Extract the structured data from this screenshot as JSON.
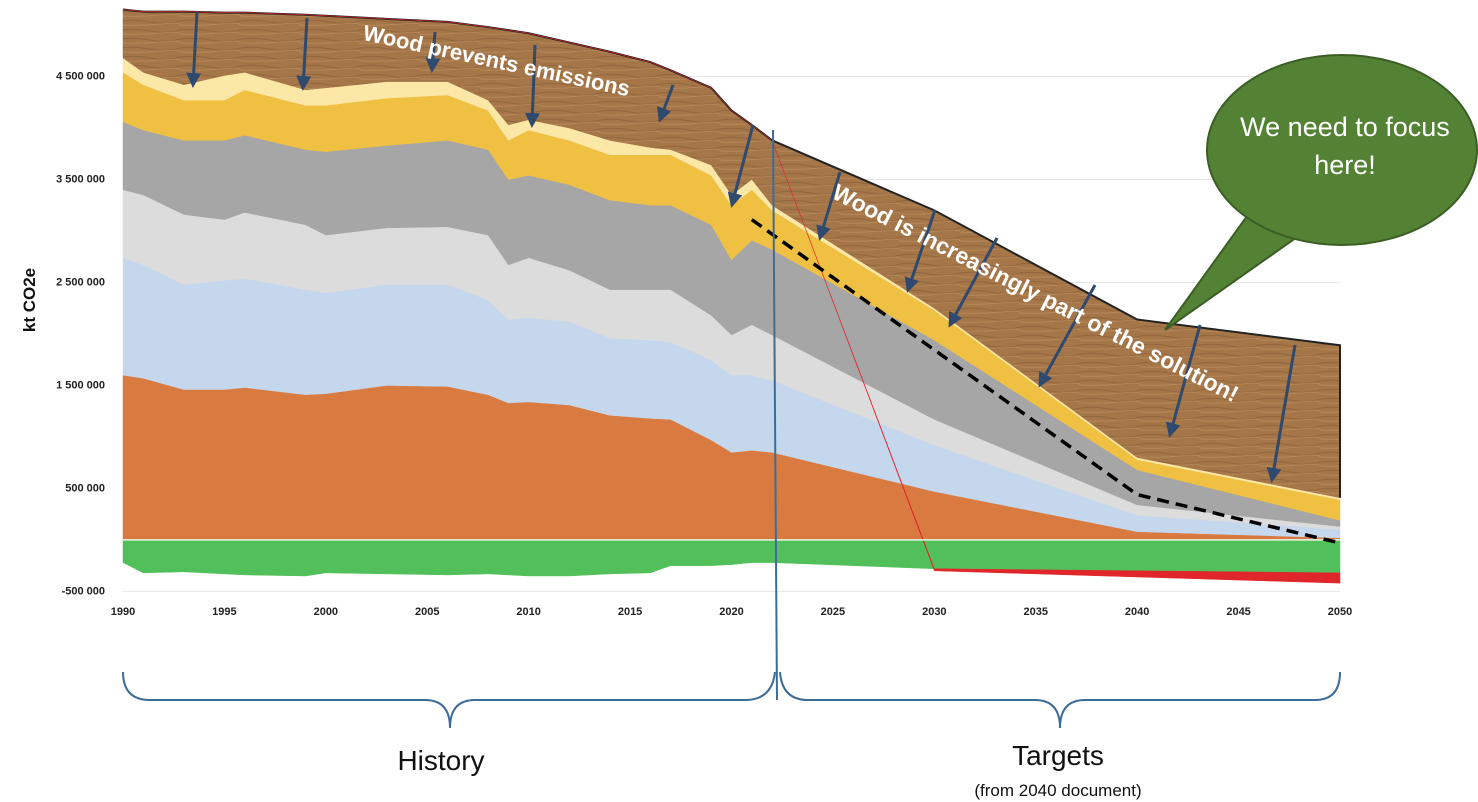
{
  "chart_data": {
    "type": "stacked-area",
    "y_label": "kt CO2e",
    "x": [
      1990,
      1991,
      1993,
      1995,
      1996,
      1999,
      2000,
      2003,
      2006,
      2008,
      2009,
      2010,
      2012,
      2014,
      2016,
      2017,
      2019,
      2020,
      2021,
      2022,
      2030,
      2040,
      2050
    ],
    "series": [
      {
        "color": "#d97b40",
        "values": [
          1600000,
          1570000,
          1460000,
          1460000,
          1480000,
          1410000,
          1420000,
          1500000,
          1490000,
          1410000,
          1330000,
          1340000,
          1310000,
          1210000,
          1180000,
          1170000,
          970000,
          850000,
          870000,
          850000,
          470000,
          80000,
          20000
        ]
      },
      {
        "color": "#c5d7ec",
        "values": [
          1140000,
          1100000,
          1020000,
          1060000,
          1060000,
          1020000,
          980000,
          980000,
          990000,
          920000,
          810000,
          820000,
          810000,
          750000,
          760000,
          750000,
          780000,
          750000,
          730000,
          700000,
          450000,
          160000,
          80000
        ]
      },
      {
        "color": "#dcdcdc",
        "values": [
          660000,
          680000,
          680000,
          590000,
          640000,
          630000,
          560000,
          550000,
          560000,
          630000,
          530000,
          580000,
          500000,
          470000,
          490000,
          510000,
          430000,
          390000,
          490000,
          440000,
          250000,
          100000,
          30000
        ]
      },
      {
        "color": "#a6a6a6",
        "values": [
          660000,
          630000,
          720000,
          770000,
          750000,
          730000,
          810000,
          800000,
          840000,
          830000,
          830000,
          800000,
          830000,
          870000,
          820000,
          820000,
          880000,
          730000,
          820000,
          830000,
          770000,
          340000,
          60000
        ]
      },
      {
        "color": "#f0c043",
        "values": [
          480000,
          440000,
          390000,
          390000,
          440000,
          430000,
          450000,
          460000,
          440000,
          380000,
          380000,
          440000,
          430000,
          440000,
          490000,
          490000,
          480000,
          530000,
          490000,
          380000,
          290000,
          100000,
          200000
        ]
      },
      {
        "color": "#fbe7a6",
        "values": [
          140000,
          120000,
          150000,
          240000,
          170000,
          150000,
          170000,
          160000,
          130000,
          100000,
          150000,
          100000,
          120000,
          140000,
          70000,
          50000,
          100000,
          100000,
          100000,
          50000,
          20000,
          20000,
          20000
        ]
      },
      {
        "color": "#a57648",
        "values": [
          470000,
          590000,
          710000,
          610000,
          580000,
          730000,
          700000,
          610000,
          580000,
          710000,
          920000,
          840000,
          830000,
          860000,
          830000,
          770000,
          750000,
          820000,
          530000,
          630000,
          950000,
          1340000,
          1480000
        ]
      },
      {
        "color": "#52c05a",
        "values": [
          -220000,
          -320000,
          -310000,
          -330000,
          -340000,
          -350000,
          -320000,
          -330000,
          -340000,
          -330000,
          -340000,
          -350000,
          -350000,
          -330000,
          -320000,
          -250000,
          -250000,
          -240000,
          -220000,
          -220000,
          -280000,
          -300000,
          -320000
        ]
      },
      {
        "color": "#e0262b",
        "values": [
          0,
          0,
          0,
          0,
          0,
          0,
          0,
          0,
          0,
          0,
          0,
          0,
          0,
          0,
          0,
          0,
          0,
          0,
          0,
          0,
          -20000,
          -60000,
          -100000
        ]
      }
    ],
    "target_line": {
      "x": [
        2021,
        2040,
        2050
      ],
      "values": [
        3110000,
        440000,
        -30000
      ],
      "color": "#000000"
    },
    "xlim": [
      1990,
      2050
    ],
    "ylim": [
      -700000,
      5200000
    ],
    "xticks": [
      1990,
      1995,
      2000,
      2005,
      2010,
      2015,
      2020,
      2025,
      2030,
      2035,
      2040,
      2045,
      2050
    ],
    "yticks": [
      {
        "value": -500000,
        "label": "-500 000"
      },
      {
        "value": 500000,
        "label": "500 000"
      },
      {
        "value": 1500000,
        "label": "1 500 000"
      },
      {
        "value": 2500000,
        "label": "2 500 000"
      },
      {
        "value": 3500000,
        "label": "3 500 000"
      },
      {
        "value": 4500000,
        "label": "4 500 000"
      }
    ],
    "grid": true,
    "annotations": {
      "history_text": "Wood prevents emissions",
      "target_text": "Wood is increasingly part of the solution!",
      "bubble": "We need to focus here!",
      "history": "History",
      "targets": "Targets",
      "targets_note": "(from 2040 document)"
    }
  }
}
